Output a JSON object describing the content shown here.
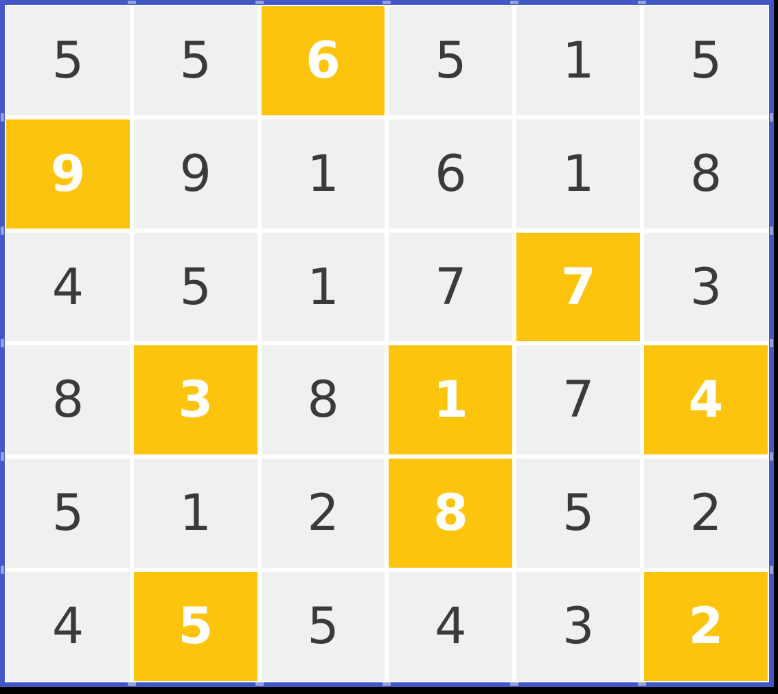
{
  "page": {
    "background": "#000000"
  },
  "board": {
    "rows": 6,
    "cols": 6,
    "colors": {
      "border": "#4457c6",
      "cell_background": "#f0f0f0",
      "highlight_background": "#fdc40d",
      "digit": "#3a3a3a",
      "highlight_digit": "#ffffff",
      "gap": "#ffffff",
      "notch": "#a3aede",
      "page_background": "#000000"
    },
    "cells": [
      [
        {
          "value": "5",
          "highlighted": false
        },
        {
          "value": "5",
          "highlighted": false
        },
        {
          "value": "6",
          "highlighted": true
        },
        {
          "value": "5",
          "highlighted": false
        },
        {
          "value": "1",
          "highlighted": false
        },
        {
          "value": "5",
          "highlighted": false
        }
      ],
      [
        {
          "value": "9",
          "highlighted": true
        },
        {
          "value": "9",
          "highlighted": false
        },
        {
          "value": "1",
          "highlighted": false
        },
        {
          "value": "6",
          "highlighted": false
        },
        {
          "value": "1",
          "highlighted": false
        },
        {
          "value": "8",
          "highlighted": false
        }
      ],
      [
        {
          "value": "4",
          "highlighted": false
        },
        {
          "value": "5",
          "highlighted": false
        },
        {
          "value": "1",
          "highlighted": false
        },
        {
          "value": "7",
          "highlighted": false
        },
        {
          "value": "7",
          "highlighted": true
        },
        {
          "value": "3",
          "highlighted": false
        }
      ],
      [
        {
          "value": "8",
          "highlighted": false
        },
        {
          "value": "3",
          "highlighted": true
        },
        {
          "value": "8",
          "highlighted": false
        },
        {
          "value": "1",
          "highlighted": true
        },
        {
          "value": "7",
          "highlighted": false
        },
        {
          "value": "4",
          "highlighted": true
        }
      ],
      [
        {
          "value": "5",
          "highlighted": false
        },
        {
          "value": "1",
          "highlighted": false
        },
        {
          "value": "2",
          "highlighted": false
        },
        {
          "value": "8",
          "highlighted": true
        },
        {
          "value": "5",
          "highlighted": false
        },
        {
          "value": "2",
          "highlighted": false
        }
      ],
      [
        {
          "value": "4",
          "highlighted": false
        },
        {
          "value": "5",
          "highlighted": true
        },
        {
          "value": "5",
          "highlighted": false
        },
        {
          "value": "4",
          "highlighted": false
        },
        {
          "value": "3",
          "highlighted": false
        },
        {
          "value": "2",
          "highlighted": true
        }
      ]
    ]
  }
}
